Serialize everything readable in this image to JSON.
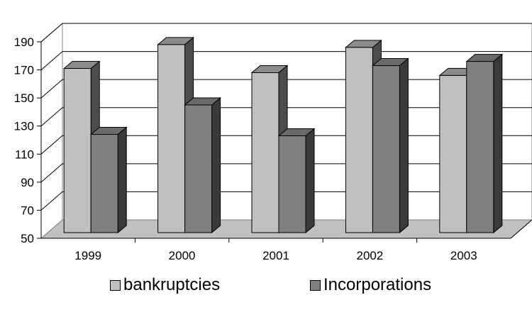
{
  "chart_data": {
    "type": "bar",
    "categories": [
      "1999",
      "2000",
      "2001",
      "2002",
      "2003"
    ],
    "series": [
      {
        "name": "bankruptcies",
        "values": [
          167,
          184,
          164,
          182,
          162
        ],
        "color": "#c0c0c0",
        "side_color": "#4d4d4d",
        "top_color": "#8c8c8c"
      },
      {
        "name": "Incorporations",
        "values": [
          120,
          141,
          119,
          169,
          172
        ],
        "color": "#808080",
        "side_color": "#3a3a3a",
        "top_color": "#6a6a6a"
      }
    ],
    "ylim": [
      50,
      190
    ],
    "yticks": [
      "50",
      "70",
      "90",
      "110",
      "130",
      "150",
      "170",
      "190"
    ],
    "grid": true,
    "legend_position": "bottom"
  }
}
